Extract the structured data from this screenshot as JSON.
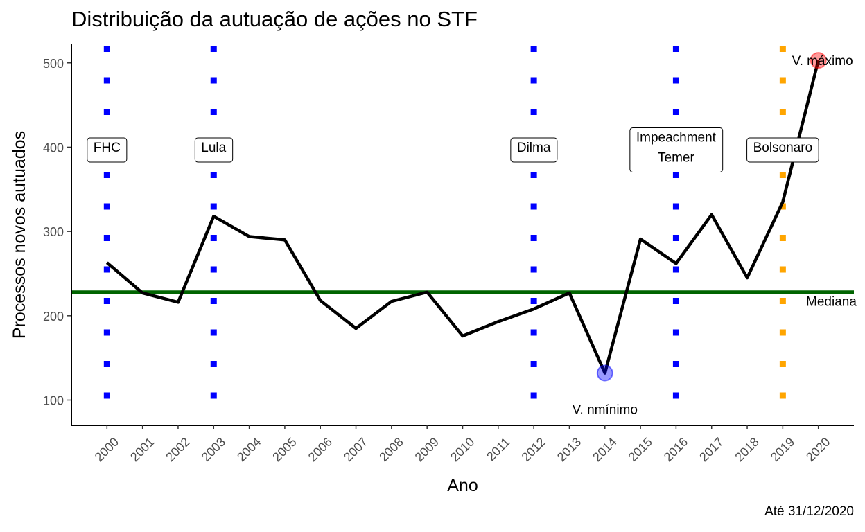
{
  "chart_data": {
    "type": "line",
    "title": "Distribuição da autuação de ações no STF",
    "xlabel": "Ano",
    "ylabel": "Processos novos autuados",
    "caption": "Até 31/12/2020",
    "ylim": [
      70,
      522
    ],
    "xlim": [
      1999,
      2021
    ],
    "y_ticks": [
      100,
      200,
      300,
      400,
      500
    ],
    "x": [
      2000,
      2001,
      2002,
      2003,
      2004,
      2005,
      2006,
      2007,
      2008,
      2009,
      2010,
      2011,
      2012,
      2013,
      2014,
      2015,
      2016,
      2017,
      2018,
      2019,
      2020
    ],
    "x_tick_labels": [
      "2000",
      "2001",
      "2002",
      "2003",
      "2004",
      "2005",
      "2006",
      "2007",
      "2008",
      "2009",
      "2010",
      "2011",
      "2012",
      "2013",
      "2014",
      "2015",
      "2016",
      "2017",
      "2018",
      "2019",
      "2020"
    ],
    "series": [
      {
        "values": [
          263,
          227,
          216,
          318,
          294,
          290,
          218,
          185,
          217,
          228,
          176,
          193,
          208,
          227,
          132,
          291,
          262,
          320,
          245,
          335,
          503
        ],
        "color": "#000000"
      }
    ],
    "median": {
      "value": 228,
      "label": "Mediana",
      "color": "#006400"
    },
    "min_point": {
      "x": 2014,
      "y": 132,
      "label": "V. nmínimo",
      "color": "#0000ff"
    },
    "max_point": {
      "x": 2020,
      "y": 503,
      "label": "V. máximo",
      "color": "#ff0000"
    },
    "events": [
      {
        "year": 2000,
        "label": "FHC",
        "color": "#0000ff"
      },
      {
        "year": 2003,
        "label": "Lula",
        "color": "#0000ff"
      },
      {
        "year": 2012,
        "label": "Dilma",
        "color": "#0000ff"
      },
      {
        "year": 2016,
        "label": "Impeachment\nTemer",
        "color": "#0000ff"
      },
      {
        "year": 2019,
        "label": "Bolsonaro",
        "color": "#ffa500"
      }
    ],
    "grid": false,
    "legend": "none"
  }
}
